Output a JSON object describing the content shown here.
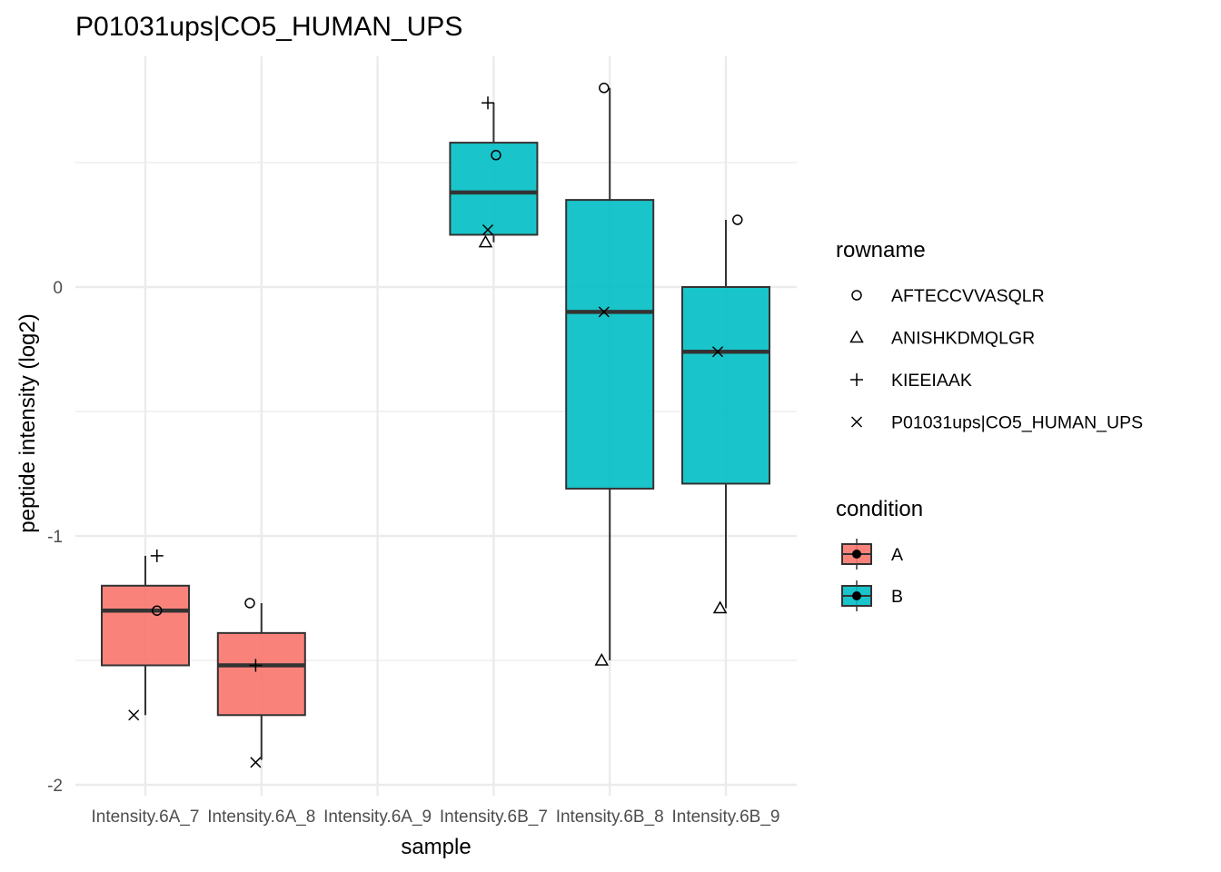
{
  "chart_data": {
    "type": "boxplot",
    "title": "P01031ups|CO5_HUMAN_UPS",
    "xlabel": "sample",
    "ylabel": "peptide intensity (log2)",
    "ylim": [
      -2.05,
      0.93
    ],
    "y_ticks": [
      0,
      -1,
      -2
    ],
    "grid": true,
    "categories": [
      "Intensity.6A_7",
      "Intensity.6A_8",
      "Intensity.6A_9",
      "Intensity.6B_7",
      "Intensity.6B_8",
      "Intensity.6B_9"
    ],
    "boxes": [
      {
        "category": "Intensity.6A_7",
        "condition": "A",
        "q1": -1.52,
        "median": -1.3,
        "q3": -1.2,
        "whisker_low": -1.72,
        "whisker_high": -1.08
      },
      {
        "category": "Intensity.6A_8",
        "condition": "A",
        "q1": -1.72,
        "median": -1.52,
        "q3": -1.39,
        "whisker_low": -1.9,
        "whisker_high": -1.27
      },
      {
        "category": "Intensity.6B_7",
        "condition": "B",
        "q1": 0.21,
        "median": 0.38,
        "q3": 0.58,
        "whisker_low": 0.18,
        "whisker_high": 0.74
      },
      {
        "category": "Intensity.6B_8",
        "condition": "B",
        "q1": -0.81,
        "median": -0.1,
        "q3": 0.35,
        "whisker_low": -1.5,
        "whisker_high": 0.8
      },
      {
        "category": "Intensity.6B_9",
        "condition": "B",
        "q1": -0.79,
        "median": -0.26,
        "q3": 0.0,
        "whisker_low": -1.29,
        "whisker_high": 0.27
      }
    ],
    "points": [
      {
        "category": "Intensity.6A_7",
        "rowname": "KIEEIAAK",
        "y": -1.08,
        "jitter": 0.1
      },
      {
        "category": "Intensity.6A_7",
        "rowname": "AFTECCVVASQLR",
        "y": -1.3,
        "jitter": 0.1
      },
      {
        "category": "Intensity.6A_7",
        "rowname": "P01031ups|CO5_HUMAN_UPS",
        "y": -1.72,
        "jitter": -0.1
      },
      {
        "category": "Intensity.6A_8",
        "rowname": "AFTECCVVASQLR",
        "y": -1.27,
        "jitter": -0.1
      },
      {
        "category": "Intensity.6A_8",
        "rowname": "KIEEIAAK",
        "y": -1.52,
        "jitter": -0.05
      },
      {
        "category": "Intensity.6A_8",
        "rowname": "P01031ups|CO5_HUMAN_UPS",
        "y": -1.91,
        "jitter": -0.05
      },
      {
        "category": "Intensity.6B_7",
        "rowname": "KIEEIAAK",
        "y": 0.74,
        "jitter": -0.05
      },
      {
        "category": "Intensity.6B_7",
        "rowname": "AFTECCVVASQLR",
        "y": 0.53,
        "jitter": 0.02
      },
      {
        "category": "Intensity.6B_7",
        "rowname": "P01031ups|CO5_HUMAN_UPS",
        "y": 0.23,
        "jitter": -0.05
      },
      {
        "category": "Intensity.6B_7",
        "rowname": "ANISHKDMQLGR",
        "y": 0.18,
        "jitter": -0.07
      },
      {
        "category": "Intensity.6B_8",
        "rowname": "AFTECCVVASQLR",
        "y": 0.8,
        "jitter": -0.05
      },
      {
        "category": "Intensity.6B_8",
        "rowname": "P01031ups|CO5_HUMAN_UPS",
        "y": -0.1,
        "jitter": -0.05
      },
      {
        "category": "Intensity.6B_8",
        "rowname": "ANISHKDMQLGR",
        "y": -1.5,
        "jitter": -0.07
      },
      {
        "category": "Intensity.6B_9",
        "rowname": "AFTECCVVASQLR",
        "y": 0.27,
        "jitter": 0.1
      },
      {
        "category": "Intensity.6B_9",
        "rowname": "P01031ups|CO5_HUMAN_UPS",
        "y": -0.26,
        "jitter": -0.07
      },
      {
        "category": "Intensity.6B_9",
        "rowname": "ANISHKDMQLGR",
        "y": -1.29,
        "jitter": -0.05
      }
    ],
    "legends": {
      "rowname": {
        "title": "rowname",
        "items": [
          {
            "label": "AFTECCVVASQLR",
            "shape": "circle"
          },
          {
            "label": "ANISHKDMQLGR",
            "shape": "triangle"
          },
          {
            "label": "KIEEIAAK",
            "shape": "plus"
          },
          {
            "label": "P01031ups|CO5_HUMAN_UPS",
            "shape": "cross"
          }
        ]
      },
      "condition": {
        "title": "condition",
        "items": [
          {
            "label": "A",
            "color": "#F8766D"
          },
          {
            "label": "B",
            "color": "#00BFC4"
          }
        ]
      }
    },
    "legend_position": "right"
  }
}
